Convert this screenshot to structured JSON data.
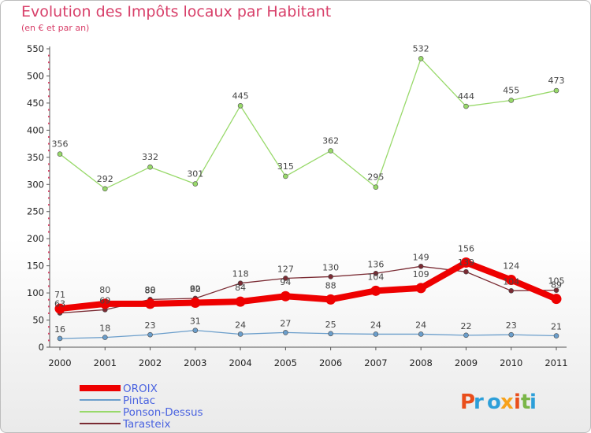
{
  "title": "Evolution des Impôts locaux par Habitant",
  "subtitle": "(en € et par an)",
  "logo_text": "Proxiti",
  "chart_data": {
    "type": "line",
    "x": [
      "2000",
      "2001",
      "2002",
      "2003",
      "2004",
      "2005",
      "2006",
      "2007",
      "2008",
      "2009",
      "2010",
      "2011"
    ],
    "ylim": [
      0,
      550
    ],
    "yticks": [
      0,
      50,
      100,
      150,
      200,
      250,
      300,
      350,
      400,
      450,
      500,
      550
    ],
    "grid": false,
    "legend_position": "bottom-left",
    "series": [
      {
        "name": "OROIX",
        "color": "#ee0000",
        "values": [
          71,
          80,
          80,
          82,
          84,
          94,
          88,
          104,
          109,
          156,
          124,
          89
        ]
      },
      {
        "name": "Pintac",
        "color": "#6b9ecb",
        "values": [
          16,
          18,
          23,
          31,
          24,
          27,
          25,
          24,
          24,
          22,
          23,
          21
        ]
      },
      {
        "name": "Ponson-Dessus",
        "color": "#98d96a",
        "values": [
          356,
          292,
          332,
          301,
          445,
          315,
          362,
          295,
          532,
          444,
          455,
          473
        ]
      },
      {
        "name": "Tarasteix",
        "color": "#7a2b33",
        "values": [
          63,
          69,
          88,
          90,
          118,
          127,
          130,
          136,
          149,
          139,
          104,
          105
        ]
      }
    ]
  }
}
